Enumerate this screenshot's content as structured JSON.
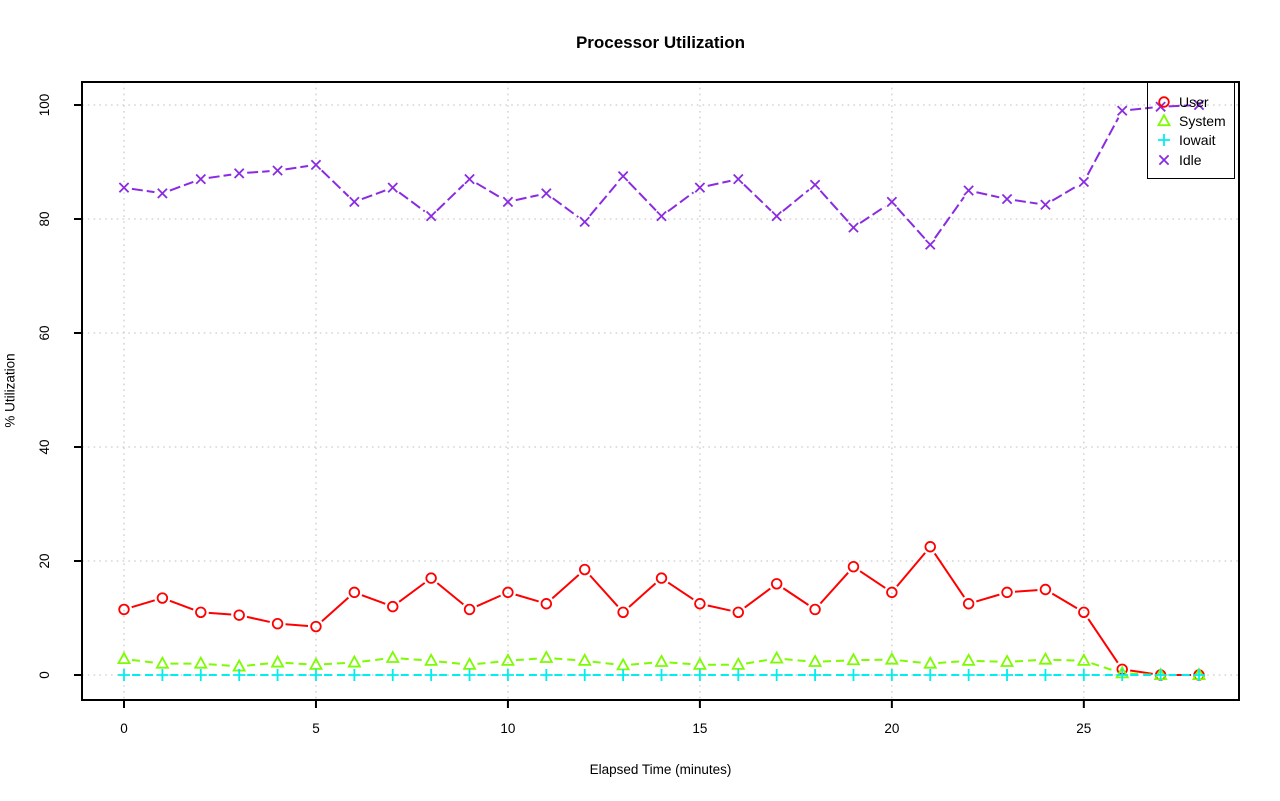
{
  "title": "Processor Utilization",
  "chart_data": {
    "type": "line",
    "title": "Processor Utilization",
    "xlabel": "Elapsed Time (minutes)",
    "ylabel": "% Utilization",
    "xlim": [
      0,
      28
    ],
    "ylim": [
      0,
      100
    ],
    "x_ticks": [
      0,
      5,
      10,
      15,
      20,
      25
    ],
    "y_ticks": [
      0,
      20,
      40,
      60,
      80,
      100
    ],
    "grid": "dotted light-gray at all ticks",
    "legend_position": "top-right",
    "plot_style": "points-and-lines with gaps around open markers (R type='b')",
    "x": [
      0,
      1,
      2,
      3,
      4,
      5,
      6,
      7,
      8,
      9,
      10,
      11,
      12,
      13,
      14,
      15,
      16,
      17,
      18,
      19,
      20,
      21,
      22,
      23,
      24,
      25,
      26,
      27,
      28
    ],
    "series": [
      {
        "name": "User",
        "color": "#ff0000",
        "marker": "circle",
        "line": "solid",
        "values": [
          11.5,
          13.5,
          11,
          10.5,
          9,
          8.5,
          14.5,
          12,
          17,
          11.5,
          14.5,
          12.5,
          18.5,
          11,
          17,
          12.5,
          11,
          16,
          11.5,
          19,
          14.5,
          22.5,
          12.5,
          14.5,
          15,
          11,
          1,
          0,
          0
        ]
      },
      {
        "name": "System",
        "color": "#7cfc00",
        "marker": "triangle",
        "line": "dashed",
        "values": [
          2.8,
          2,
          2,
          1.5,
          2.2,
          1.8,
          2.2,
          3,
          2.5,
          1.8,
          2.5,
          3,
          2.5,
          1.7,
          2.3,
          1.8,
          1.8,
          2.9,
          2.3,
          2.6,
          2.7,
          2,
          2.5,
          2.3,
          2.7,
          2.5,
          0.3,
          0,
          0
        ]
      },
      {
        "name": "Iowait",
        "color": "#00eeee",
        "marker": "plus",
        "line": "dashed",
        "values": [
          0,
          0,
          0,
          0,
          0,
          0,
          0,
          0,
          0,
          0,
          0,
          0,
          0,
          0,
          0,
          0,
          0,
          0,
          0,
          0,
          0,
          0,
          0,
          0,
          0,
          0,
          0,
          0,
          0
        ]
      },
      {
        "name": "Idle",
        "color": "#8a2be2",
        "marker": "x",
        "line": "longdash",
        "values": [
          85.5,
          84.5,
          87,
          88,
          88.5,
          89.5,
          83,
          85.5,
          80.5,
          87,
          83,
          84.5,
          79.5,
          87.5,
          80.5,
          85.5,
          87,
          80.5,
          86,
          78.5,
          83,
          75.5,
          85,
          83.5,
          82.5,
          86.5,
          99,
          99.7,
          100
        ]
      }
    ]
  },
  "colors": {
    "background": "#ffffff",
    "axis": "#000000",
    "grid": "#cccccc",
    "title_text": "#000000"
  }
}
